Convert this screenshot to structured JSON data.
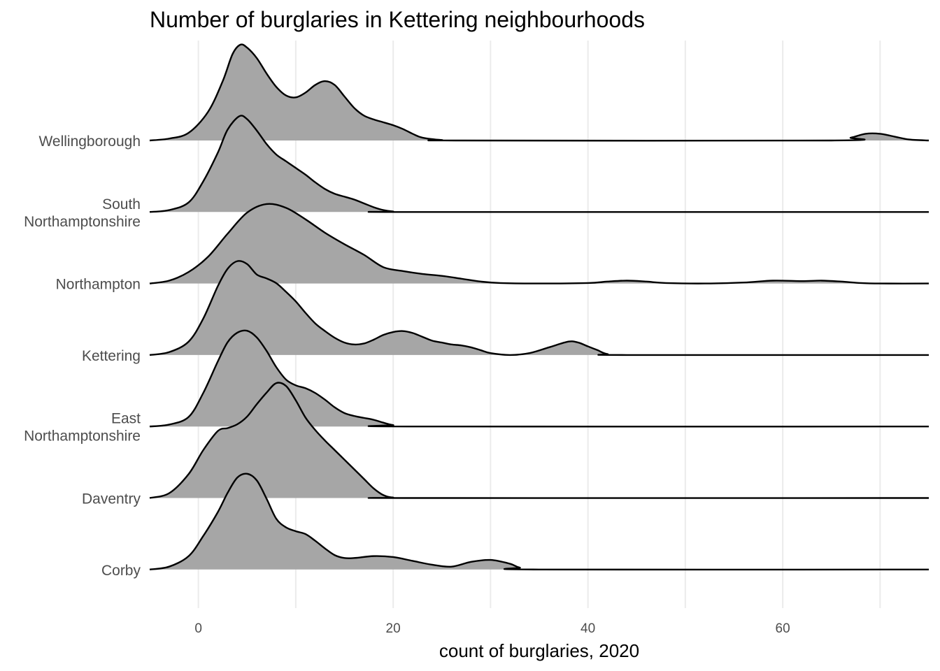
{
  "chart_data": {
    "type": "ridgeline",
    "title": "Number of burglaries in Kettering neighbourhoods",
    "xlabel": "count of burglaries, 2020",
    "ylabel": "",
    "xlim": [
      -5,
      75
    ],
    "x_ticks": [
      0,
      20,
      40,
      60
    ],
    "grid": "vertical",
    "fill_color": "#a6a6a6",
    "line_color": "#000000",
    "series": [
      {
        "name": "Wellingborough",
        "points": [
          [
            -5,
            0
          ],
          [
            -3,
            0.02
          ],
          [
            -1,
            0.08
          ],
          [
            1,
            0.3
          ],
          [
            2.5,
            0.62
          ],
          [
            3.5,
            0.9
          ],
          [
            4.3,
            1
          ],
          [
            5,
            0.97
          ],
          [
            6,
            0.86
          ],
          [
            7,
            0.7
          ],
          [
            8,
            0.56
          ],
          [
            9,
            0.47
          ],
          [
            10,
            0.45
          ],
          [
            11,
            0.5
          ],
          [
            12,
            0.58
          ],
          [
            13,
            0.62
          ],
          [
            14,
            0.58
          ],
          [
            15,
            0.46
          ],
          [
            16,
            0.34
          ],
          [
            17,
            0.26
          ],
          [
            18,
            0.22
          ],
          [
            19,
            0.19
          ],
          [
            20,
            0.16
          ],
          [
            21,
            0.12
          ],
          [
            22,
            0.07
          ],
          [
            23,
            0.03
          ],
          [
            25,
            0.005
          ],
          [
            27,
            0
          ],
          [
            65,
            0
          ],
          [
            67,
            0.03
          ],
          [
            68.5,
            0.07
          ],
          [
            70,
            0.07
          ],
          [
            71.5,
            0.04
          ],
          [
            73,
            0.01
          ],
          [
            75,
            0
          ]
        ]
      },
      {
        "name": "South\nNorthamptonshire",
        "points": [
          [
            -5,
            0
          ],
          [
            -3,
            0.02
          ],
          [
            -1,
            0.1
          ],
          [
            0.5,
            0.32
          ],
          [
            2,
            0.62
          ],
          [
            3,
            0.86
          ],
          [
            4.2,
            1
          ],
          [
            5,
            0.97
          ],
          [
            6,
            0.85
          ],
          [
            7,
            0.71
          ],
          [
            8,
            0.6
          ],
          [
            9,
            0.53
          ],
          [
            10,
            0.46
          ],
          [
            11,
            0.39
          ],
          [
            12,
            0.31
          ],
          [
            13,
            0.24
          ],
          [
            14,
            0.19
          ],
          [
            15,
            0.16
          ],
          [
            16,
            0.13
          ],
          [
            17,
            0.09
          ],
          [
            18,
            0.05
          ],
          [
            19,
            0.02
          ],
          [
            20,
            0.005
          ],
          [
            22,
            0
          ],
          [
            75,
            0
          ]
        ]
      },
      {
        "name": "Northampton",
        "points": [
          [
            -5,
            0
          ],
          [
            -3,
            0.03
          ],
          [
            -1,
            0.12
          ],
          [
            1,
            0.28
          ],
          [
            3,
            0.52
          ],
          [
            5,
            0.74
          ],
          [
            7,
            0.83
          ],
          [
            9,
            0.79
          ],
          [
            11,
            0.67
          ],
          [
            13,
            0.53
          ],
          [
            15,
            0.41
          ],
          [
            17,
            0.3
          ],
          [
            19,
            0.17
          ],
          [
            21,
            0.13
          ],
          [
            23,
            0.1
          ],
          [
            25,
            0.08
          ],
          [
            27,
            0.05
          ],
          [
            29,
            0.02
          ],
          [
            31,
            0.005
          ],
          [
            35,
            0
          ],
          [
            40,
            0.005
          ],
          [
            42,
            0.02
          ],
          [
            44,
            0.03
          ],
          [
            46,
            0.02
          ],
          [
            48,
            0.005
          ],
          [
            52,
            0
          ],
          [
            56,
            0.01
          ],
          [
            59,
            0.03
          ],
          [
            62,
            0.025
          ],
          [
            64,
            0.03
          ],
          [
            66,
            0.02
          ],
          [
            68,
            0.005
          ],
          [
            70,
            0
          ],
          [
            75,
            0
          ]
        ]
      },
      {
        "name": "Kettering",
        "points": [
          [
            -5,
            0
          ],
          [
            -3,
            0.03
          ],
          [
            -1,
            0.14
          ],
          [
            0.5,
            0.38
          ],
          [
            2,
            0.72
          ],
          [
            3,
            0.9
          ],
          [
            4,
            0.98
          ],
          [
            5,
            0.95
          ],
          [
            6,
            0.84
          ],
          [
            7,
            0.8
          ],
          [
            8,
            0.75
          ],
          [
            9,
            0.66
          ],
          [
            10,
            0.56
          ],
          [
            11,
            0.44
          ],
          [
            12,
            0.33
          ],
          [
            13,
            0.25
          ],
          [
            14,
            0.18
          ],
          [
            15,
            0.13
          ],
          [
            16,
            0.11
          ],
          [
            17,
            0.12
          ],
          [
            18,
            0.16
          ],
          [
            19,
            0.21
          ],
          [
            20,
            0.24
          ],
          [
            21,
            0.25
          ],
          [
            22,
            0.23
          ],
          [
            23,
            0.19
          ],
          [
            24,
            0.15
          ],
          [
            25,
            0.13
          ],
          [
            26,
            0.11
          ],
          [
            27,
            0.1
          ],
          [
            28,
            0.08
          ],
          [
            29,
            0.05
          ],
          [
            30,
            0.02
          ],
          [
            32,
            0
          ],
          [
            34,
            0.02
          ],
          [
            36,
            0.08
          ],
          [
            38,
            0.14
          ],
          [
            39,
            0.13
          ],
          [
            40,
            0.09
          ],
          [
            41,
            0.05
          ],
          [
            42,
            0.01
          ],
          [
            44,
            0
          ],
          [
            75,
            0
          ]
        ]
      },
      {
        "name": "East\nNorthamptonshire",
        "points": [
          [
            -5,
            0
          ],
          [
            -3,
            0.02
          ],
          [
            -1,
            0.1
          ],
          [
            0.5,
            0.35
          ],
          [
            2,
            0.68
          ],
          [
            3,
            0.88
          ],
          [
            4,
            0.98
          ],
          [
            5,
            1
          ],
          [
            6,
            0.93
          ],
          [
            7,
            0.79
          ],
          [
            8,
            0.62
          ],
          [
            9,
            0.49
          ],
          [
            10,
            0.43
          ],
          [
            11,
            0.4
          ],
          [
            12,
            0.35
          ],
          [
            13,
            0.28
          ],
          [
            14,
            0.2
          ],
          [
            15,
            0.14
          ],
          [
            16,
            0.11
          ],
          [
            17,
            0.09
          ],
          [
            18,
            0.07
          ],
          [
            19,
            0.04
          ],
          [
            20,
            0.015
          ],
          [
            22,
            0
          ],
          [
            75,
            0
          ]
        ]
      },
      {
        "name": "Daventry",
        "points": [
          [
            -5,
            0
          ],
          [
            -3,
            0.05
          ],
          [
            -1,
            0.25
          ],
          [
            0.5,
            0.5
          ],
          [
            2,
            0.7
          ],
          [
            3,
            0.73
          ],
          [
            4,
            0.77
          ],
          [
            5,
            0.85
          ],
          [
            6,
            0.98
          ],
          [
            7,
            1.1
          ],
          [
            8,
            1.2
          ],
          [
            9,
            1.17
          ],
          [
            10,
            1.02
          ],
          [
            11,
            0.84
          ],
          [
            12,
            0.71
          ],
          [
            13,
            0.6
          ],
          [
            14,
            0.5
          ],
          [
            15,
            0.4
          ],
          [
            16,
            0.3
          ],
          [
            17,
            0.2
          ],
          [
            18,
            0.1
          ],
          [
            19,
            0.03
          ],
          [
            20,
            0.005
          ],
          [
            22,
            0
          ],
          [
            75,
            0
          ]
        ]
      },
      {
        "name": "Corby",
        "points": [
          [
            -5,
            0
          ],
          [
            -3,
            0.03
          ],
          [
            -1,
            0.14
          ],
          [
            0.5,
            0.35
          ],
          [
            2,
            0.6
          ],
          [
            3,
            0.8
          ],
          [
            4,
            0.96
          ],
          [
            5,
            1
          ],
          [
            6,
            0.93
          ],
          [
            7,
            0.74
          ],
          [
            8,
            0.53
          ],
          [
            9,
            0.44
          ],
          [
            10,
            0.4
          ],
          [
            11,
            0.37
          ],
          [
            12,
            0.3
          ],
          [
            13,
            0.22
          ],
          [
            14,
            0.15
          ],
          [
            15,
            0.12
          ],
          [
            16,
            0.12
          ],
          [
            18,
            0.14
          ],
          [
            20,
            0.13
          ],
          [
            22,
            0.09
          ],
          [
            24,
            0.05
          ],
          [
            26,
            0.03
          ],
          [
            28,
            0.08
          ],
          [
            30,
            0.1
          ],
          [
            32,
            0.06
          ],
          [
            33,
            0.02
          ],
          [
            35,
            0
          ],
          [
            75,
            0
          ]
        ]
      }
    ]
  }
}
